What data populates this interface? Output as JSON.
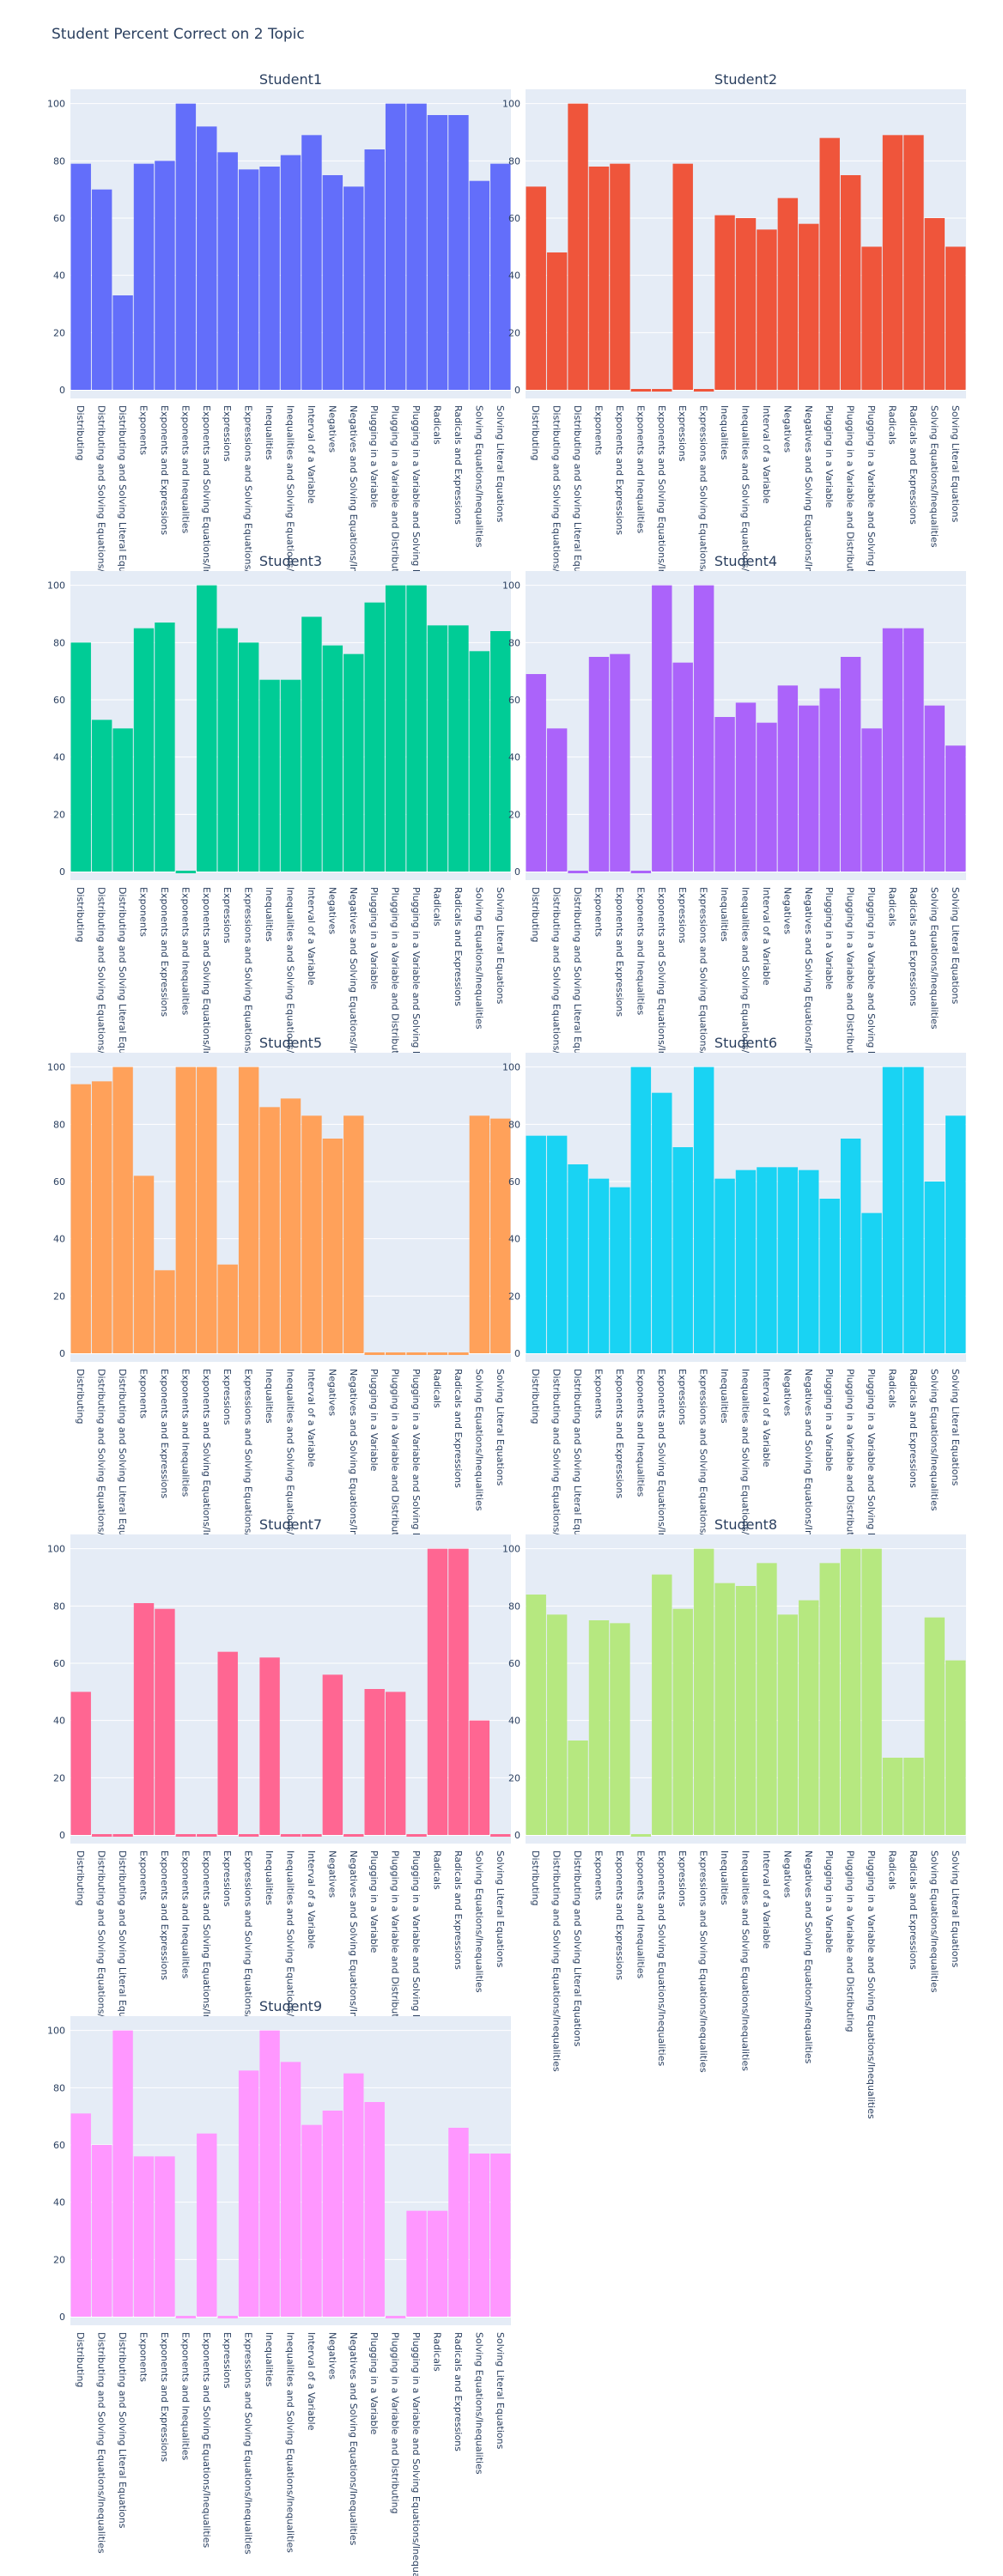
{
  "figure": {
    "title": "Student Percent Correct on 2 Topic"
  },
  "chart_data": {
    "type": "bar",
    "ylim": [
      0,
      100
    ],
    "yticks": [
      0,
      20,
      40,
      60,
      80,
      100
    ],
    "grid": true,
    "categories": [
      "Distributing",
      "Distributing and Solving Equations/Inequalities",
      "Distributing and Solving Literal Equations",
      "Exponents",
      "Exponents and Expressions",
      "Exponents and Inequalities",
      "Exponents and Solving Equations/Inequalities",
      "Expressions",
      "Expressions and Solving Equations/Inequalities",
      "Inequalities",
      "Inequalities and Solving Equations/Inequalities",
      "Interval of a Variable",
      "Negatives",
      "Negatives and Solving Equations/Inequalities",
      "Plugging in a Variable",
      "Plugging in a Variable and Distributing",
      "Plugging in a Variable and Solving Equations/Inequalities",
      "Radicals",
      "Radicals and Expressions",
      "Solving Equations/Inequalities",
      "Solving Literal Equations"
    ],
    "series": [
      {
        "name": "Student1",
        "color": "#636efa",
        "values": [
          79,
          70,
          33,
          79,
          80,
          100,
          92,
          83,
          77,
          78,
          82,
          89,
          75,
          71,
          84,
          100,
          100,
          96,
          96,
          73,
          79
        ]
      },
      {
        "name": "Student2",
        "color": "#EF553B",
        "values": [
          71,
          48,
          100,
          78,
          79,
          0,
          0,
          79,
          0,
          61,
          60,
          56,
          67,
          58,
          88,
          75,
          50,
          89,
          89,
          60,
          50
        ]
      },
      {
        "name": "Student3",
        "color": "#00cc96",
        "values": [
          80,
          53,
          50,
          85,
          87,
          0,
          100,
          85,
          80,
          67,
          67,
          89,
          79,
          76,
          94,
          100,
          100,
          86,
          86,
          77,
          84
        ]
      },
      {
        "name": "Student4",
        "color": "#ab63fa",
        "values": [
          69,
          50,
          0,
          75,
          76,
          0,
          100,
          73,
          100,
          54,
          59,
          52,
          65,
          58,
          64,
          75,
          50,
          85,
          85,
          58,
          44
        ]
      },
      {
        "name": "Student5",
        "color": "#FFA15A",
        "values": [
          94,
          95,
          100,
          62,
          29,
          100,
          100,
          31,
          100,
          86,
          89,
          83,
          75,
          83,
          0,
          0,
          0,
          0,
          0,
          83,
          82
        ]
      },
      {
        "name": "Student6",
        "color": "#19d3f3",
        "values": [
          76,
          76,
          66,
          61,
          58,
          100,
          91,
          72,
          100,
          61,
          64,
          65,
          65,
          64,
          54,
          75,
          49,
          100,
          100,
          60,
          83
        ]
      },
      {
        "name": "Student7",
        "color": "#FF6692",
        "values": [
          50,
          0,
          0,
          81,
          79,
          0,
          0,
          64,
          0,
          62,
          0,
          0,
          56,
          0,
          51,
          50,
          0,
          100,
          100,
          40,
          0
        ]
      },
      {
        "name": "Student8",
        "color": "#B6E880",
        "values": [
          84,
          77,
          33,
          75,
          74,
          0,
          91,
          79,
          100,
          88,
          87,
          95,
          77,
          82,
          95,
          100,
          100,
          27,
          27,
          76,
          61
        ]
      },
      {
        "name": "Student9",
        "color": "#FF97FF",
        "values": [
          71,
          60,
          100,
          56,
          56,
          0,
          64,
          0,
          86,
          100,
          89,
          67,
          72,
          85,
          75,
          0,
          37,
          37,
          66,
          57,
          57
        ]
      }
    ]
  }
}
